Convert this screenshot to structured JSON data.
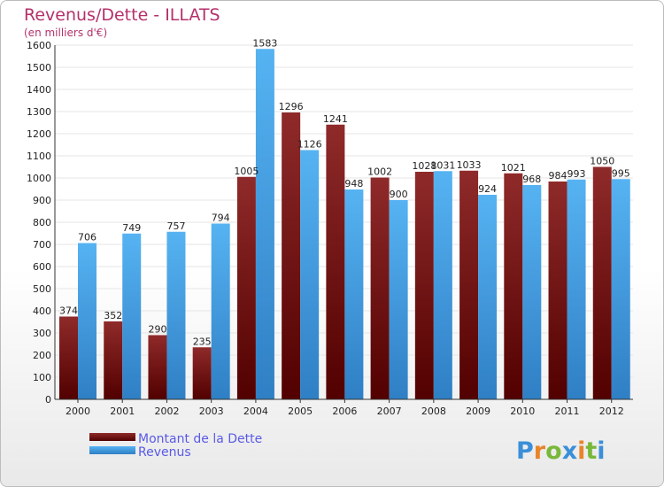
{
  "chart_data": {
    "type": "bar",
    "title": "Revenus/Dette - ILLATS",
    "subtitle": "(en milliers d'€)",
    "categories": [
      "2000",
      "2001",
      "2002",
      "2003",
      "2004",
      "2005",
      "2006",
      "2007",
      "2008",
      "2009",
      "2010",
      "2011",
      "2012"
    ],
    "series": [
      {
        "name": "Montant de la Dette",
        "color": "#7a1414",
        "values": [
          374,
          352,
          290,
          235,
          1005,
          1296,
          1241,
          1002,
          1028,
          1033,
          1021,
          984,
          1050
        ]
      },
      {
        "name": "Revenus",
        "color": "#3f9fe6",
        "values": [
          706,
          749,
          757,
          794,
          1583,
          1126,
          948,
          900,
          1031,
          924,
          968,
          993,
          995
        ]
      }
    ],
    "ylim": [
      0,
      1600
    ],
    "yticks": [
      0,
      100,
      200,
      300,
      400,
      500,
      600,
      700,
      800,
      900,
      1000,
      1100,
      1200,
      1300,
      1400,
      1500,
      1600
    ],
    "grid": true,
    "legend_position": "bottom-left"
  },
  "colors": {
    "title": "#b5306b",
    "legend_text": "#5a5ae6",
    "grid": "#e6e6e6"
  },
  "logo": {
    "text": "Proxiti"
  }
}
